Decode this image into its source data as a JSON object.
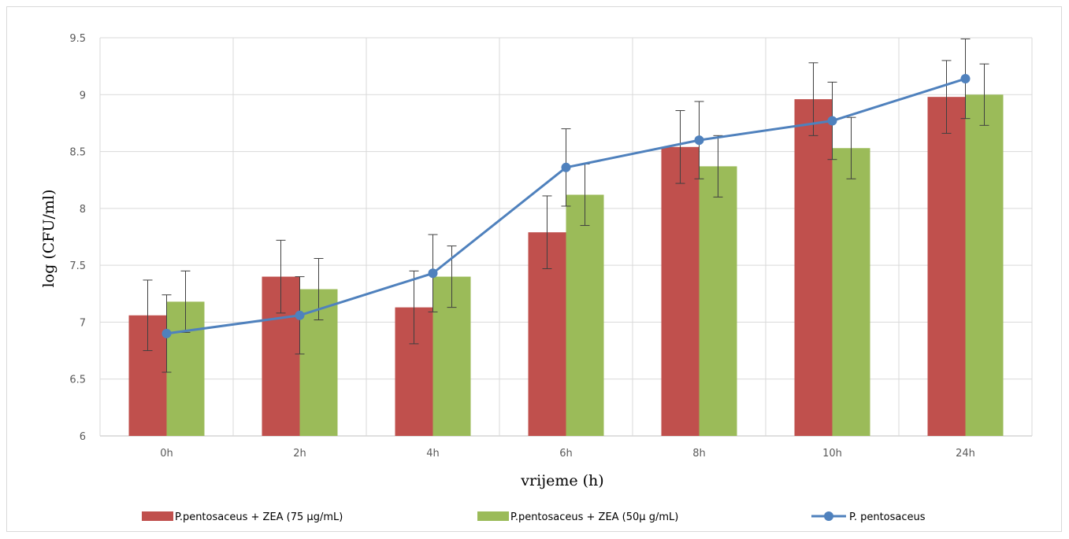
{
  "chart_data": {
    "type": "bar",
    "title": "",
    "xlabel": "vrijeme (h)",
    "ylabel": "log (CFU/ml)",
    "ylim": [
      6,
      9.5
    ],
    "yticks": [
      "6",
      "6.5",
      "7",
      "7.5",
      "8",
      "8.5",
      "9",
      "9.5"
    ],
    "categories": [
      "0h",
      "2h",
      "4h",
      "6h",
      "8h",
      "10h",
      "24h"
    ],
    "grid": true,
    "legend_position": "bottom",
    "series": [
      {
        "name": "P.pentosaceus + ZEA (75 µg/mL)",
        "kind": "bar",
        "color": "#c0504d",
        "values": [
          7.06,
          7.4,
          7.13,
          7.79,
          8.54,
          8.96,
          8.98
        ],
        "errors": [
          0.31,
          0.32,
          0.32,
          0.32,
          0.32,
          0.32,
          0.32
        ]
      },
      {
        "name": "P.pentosaceus + ZEA (50µ g/mL)",
        "kind": "bar",
        "color": "#9bbb59",
        "values": [
          7.18,
          7.29,
          7.4,
          8.12,
          8.37,
          8.53,
          9.0
        ],
        "errors": [
          0.27,
          0.27,
          0.27,
          0.27,
          0.27,
          0.27,
          0.27
        ]
      },
      {
        "name": "P. pentosaceus",
        "kind": "line",
        "color": "#4f81bd",
        "values": [
          6.9,
          7.06,
          7.43,
          8.36,
          8.6,
          8.77,
          9.14
        ],
        "errors": [
          0.34,
          0.34,
          0.34,
          0.34,
          0.34,
          0.34,
          0.35
        ]
      }
    ]
  }
}
